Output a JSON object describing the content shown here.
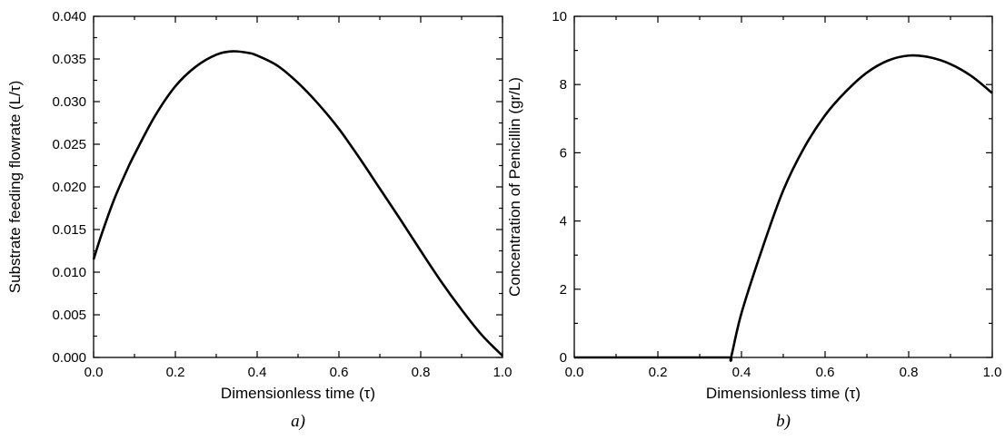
{
  "chart_data": [
    {
      "type": "line",
      "panel_label": "a)",
      "xlabel": "Dimensionless time (τ)",
      "ylabel": "Substrate feeding flowrate (L/τ)",
      "xlim": [
        0.0,
        1.0
      ],
      "ylim": [
        0.0,
        0.04
      ],
      "xticks": [
        "0.0",
        "0.2",
        "0.4",
        "0.6",
        "0.8",
        "1.0"
      ],
      "yticks": [
        "0.000",
        "0.005",
        "0.010",
        "0.015",
        "0.020",
        "0.025",
        "0.030",
        "0.035",
        "0.040"
      ],
      "grid": false,
      "color": "#000000",
      "series": [
        {
          "x": [
            0.0,
            0.02,
            0.05,
            0.08,
            0.1,
            0.15,
            0.2,
            0.25,
            0.3,
            0.34,
            0.38,
            0.4,
            0.45,
            0.5,
            0.55,
            0.6,
            0.65,
            0.7,
            0.75,
            0.8,
            0.85,
            0.9,
            0.95,
            1.0
          ],
          "y": [
            0.0115,
            0.0145,
            0.0185,
            0.0218,
            0.0238,
            0.0283,
            0.0318,
            0.0341,
            0.0355,
            0.0359,
            0.0357,
            0.0354,
            0.0342,
            0.0322,
            0.0297,
            0.0268,
            0.0234,
            0.0198,
            0.0162,
            0.0125,
            0.0089,
            0.0056,
            0.0026,
            0.0002
          ]
        }
      ]
    },
    {
      "type": "line",
      "panel_label": "b)",
      "xlabel": "Dimensionless time (τ)",
      "ylabel": "Concentration of Penicillin (gr/L)",
      "xlim": [
        0.0,
        1.0
      ],
      "ylim": [
        0,
        10
      ],
      "xticks": [
        "0.0",
        "0.2",
        "0.4",
        "0.6",
        "0.8",
        "1.0"
      ],
      "yticks": [
        "0",
        "2",
        "4",
        "6",
        "8",
        "10"
      ],
      "grid": false,
      "color": "#000000",
      "series": [
        {
          "x": [
            0.0,
            0.1,
            0.2,
            0.3,
            0.37,
            0.375,
            0.4,
            0.45,
            0.5,
            0.55,
            0.6,
            0.65,
            0.7,
            0.75,
            0.8,
            0.85,
            0.9,
            0.95,
            1.0
          ],
          "y": [
            0,
            0,
            0,
            0,
            0,
            0.0,
            1.3,
            3.2,
            4.9,
            6.15,
            7.1,
            7.8,
            8.35,
            8.7,
            8.85,
            8.8,
            8.6,
            8.25,
            7.75
          ]
        }
      ]
    }
  ]
}
